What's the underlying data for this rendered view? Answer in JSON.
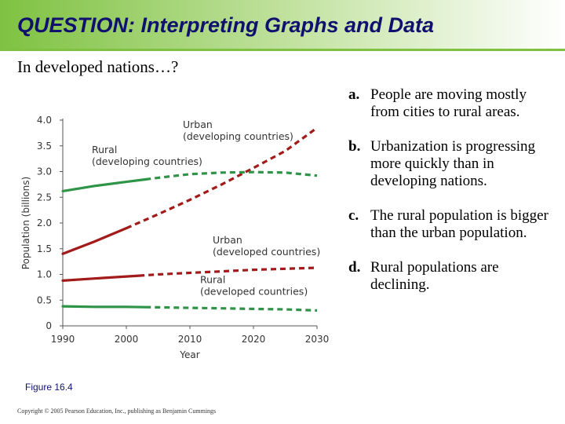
{
  "header": {
    "title": "QUESTION: Interpreting Graphs and Data",
    "subtitle": "In developed nations…?"
  },
  "answers": [
    {
      "letter": "a.",
      "text": "People are moving mostly from cities to rural areas."
    },
    {
      "letter": "b.",
      "text": "Urbanization is progressing more quickly than in developing nations."
    },
    {
      "letter": "c.",
      "text": "The rural population is bigger than the urban population."
    },
    {
      "letter": "d.",
      "text": "Rural populations are declining."
    }
  ],
  "figure_caption": "Figure 16.4",
  "copyright": "Copyright © 2005 Pearson Education, Inc., publishing as Benjamin Cummings",
  "chart_data": {
    "type": "line",
    "xlabel": "Year",
    "ylabel": "Population (billions)",
    "xlim": [
      1990,
      2030
    ],
    "ylim": [
      0,
      4.0
    ],
    "x_ticks": [
      1990,
      2000,
      2010,
      2020,
      2030
    ],
    "y_ticks": [
      "0",
      "0.5",
      "1.0",
      "1.5",
      "2.0",
      "2.5",
      "3.0",
      "3.5",
      "4.0"
    ],
    "grid": false,
    "legend": "none (direct labels)",
    "projection_note": "solid = observed, dashed = projected",
    "series": [
      {
        "name": "Urban (developing countries)",
        "label_lines": [
          "Urban",
          "(developing countries)"
        ],
        "color": "#a31a1a",
        "x": [
          1990,
          1995,
          2000,
          2005,
          2010,
          2015,
          2020,
          2025,
          2030
        ],
        "y": [
          1.4,
          1.64,
          1.9,
          2.17,
          2.45,
          2.75,
          3.07,
          3.4,
          3.85
        ],
        "projected_from": 2000
      },
      {
        "name": "Rural (developing countries)",
        "label_lines": [
          "Rural",
          "(developing countries)"
        ],
        "color": "#2e9447",
        "x": [
          1990,
          1995,
          2000,
          2005,
          2010,
          2015,
          2020,
          2025,
          2030
        ],
        "y": [
          2.62,
          2.72,
          2.8,
          2.88,
          2.95,
          2.98,
          2.99,
          2.98,
          2.92
        ],
        "projected_from": 2003
      },
      {
        "name": "Urban (developed countries)",
        "label_lines": [
          "Urban",
          "(developed countries)"
        ],
        "color": "#a31a1a",
        "x": [
          1990,
          1995,
          2000,
          2005,
          2010,
          2015,
          2020,
          2025,
          2030
        ],
        "y": [
          0.88,
          0.92,
          0.96,
          1.0,
          1.03,
          1.06,
          1.09,
          1.11,
          1.13
        ],
        "projected_from": 2002
      },
      {
        "name": "Rural (developed countries)",
        "label_lines": [
          "Rural",
          "(developed countries)"
        ],
        "color": "#2e9447",
        "x": [
          1990,
          1995,
          2000,
          2005,
          2010,
          2015,
          2020,
          2025,
          2030
        ],
        "y": [
          0.38,
          0.37,
          0.37,
          0.36,
          0.35,
          0.34,
          0.33,
          0.32,
          0.3
        ],
        "projected_from": 2003
      }
    ]
  }
}
